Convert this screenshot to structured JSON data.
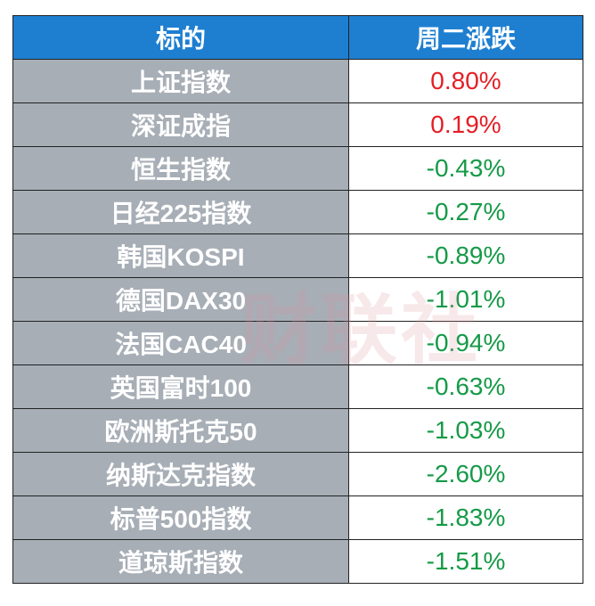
{
  "table": {
    "header": [
      "标的",
      "周二涨跌"
    ],
    "rows": [
      [
        "上证指数",
        "0.80%"
      ],
      [
        "深证成指",
        "0.19%"
      ],
      [
        "恒生指数",
        "-0.43%"
      ],
      [
        "日经225指数",
        "-0.27%"
      ],
      [
        "韩国KOSPI",
        "-0.89%"
      ],
      [
        "德国DAX30",
        "-1.01%"
      ],
      [
        "法国CAC40",
        "-0.94%"
      ],
      [
        "英国富时100",
        "-0.63%"
      ],
      [
        "欧洲斯托克50",
        "-1.03%"
      ],
      [
        "纳斯达克指数",
        "-2.60%"
      ],
      [
        "标普500指数",
        "-1.83%"
      ],
      [
        "道琼斯指数",
        "-1.51%"
      ]
    ]
  },
  "watermark": "财联社"
}
